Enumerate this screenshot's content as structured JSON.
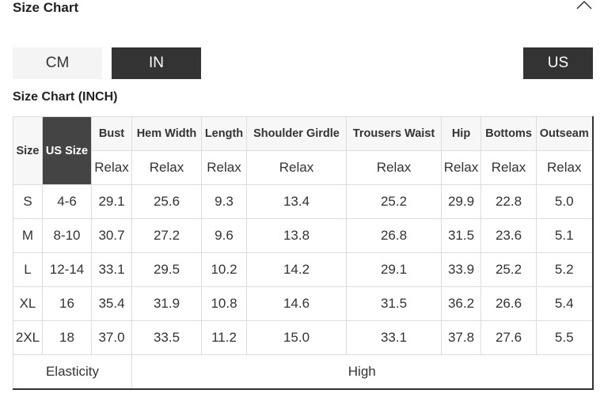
{
  "header": {
    "title": "Size Chart",
    "collapse_icon": "chevron-up-icon"
  },
  "units": {
    "cm": "CM",
    "in": "IN",
    "region": "US",
    "selected_unit": "IN"
  },
  "table_title": "Size Chart (INCH)",
  "table": {
    "size_header": "Size",
    "us_size_header": "US Size",
    "columns": [
      "Bust",
      "Hem Width",
      "Length",
      "Shoulder Girdle",
      "Trousers Waist",
      "Hip",
      "Bottoms",
      "Outseam"
    ],
    "subheaders": [
      "Relax",
      "Relax",
      "Relax",
      "Relax",
      "Relax",
      "Relax",
      "Relax",
      "Relax"
    ],
    "rows": [
      [
        "S",
        "4-6",
        "29.1",
        "25.6",
        "9.3",
        "13.4",
        "25.2",
        "29.9",
        "22.8",
        "5.0"
      ],
      [
        "M",
        "8-10",
        "30.7",
        "27.2",
        "9.6",
        "13.8",
        "26.8",
        "31.5",
        "23.6",
        "5.1"
      ],
      [
        "L",
        "12-14",
        "33.1",
        "29.5",
        "10.2",
        "14.2",
        "29.1",
        "33.9",
        "25.2",
        "5.2"
      ],
      [
        "XL",
        "16",
        "35.4",
        "31.9",
        "10.8",
        "14.6",
        "31.5",
        "36.2",
        "26.6",
        "5.4"
      ],
      [
        "2XL",
        "18",
        "37.0",
        "33.5",
        "11.2",
        "15.0",
        "33.1",
        "37.8",
        "27.6",
        "5.5"
      ]
    ],
    "footer_label": "Elasticity",
    "footer_value": "High"
  }
}
